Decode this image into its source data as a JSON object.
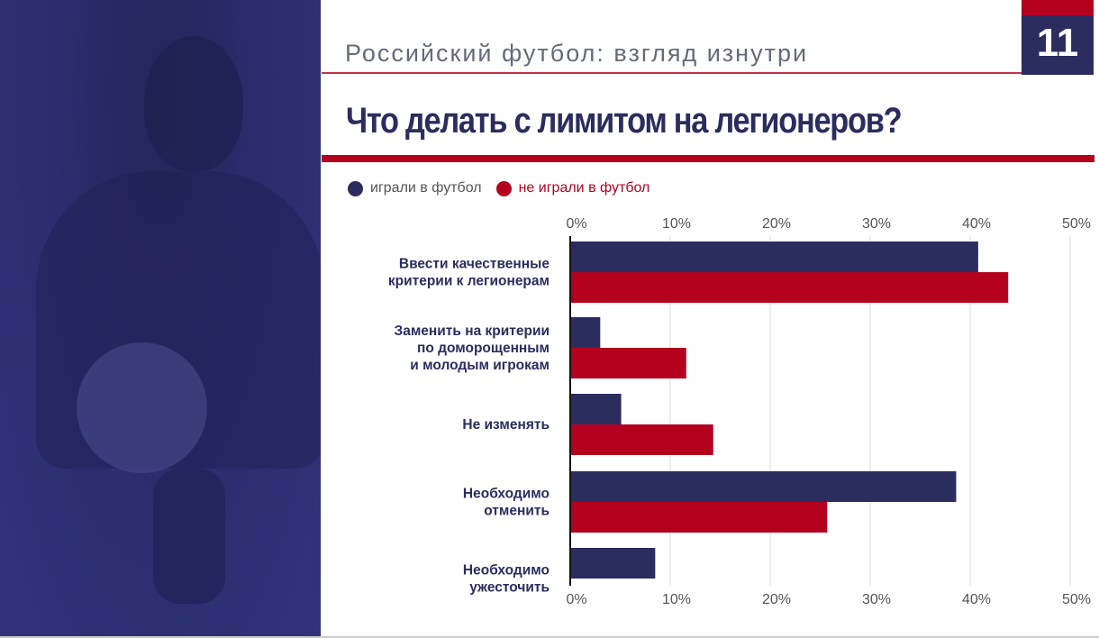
{
  "header": {
    "subtitle": "Российский футбол: взгляд изнутри",
    "page_number": "11"
  },
  "colors": {
    "navy": "#2b2d5e",
    "red": "#b4001f"
  },
  "chart_data": {
    "type": "bar",
    "orientation": "horizontal",
    "title": "Что делать с лимитом на легионеров?",
    "categories": [
      [
        "Ввести качественные",
        "критерии к легионерам"
      ],
      [
        "Заменить на критерии",
        "по доморощенным",
        "и молодым игрокам"
      ],
      [
        "Не изменять"
      ],
      [
        "Необходимо",
        "отменить"
      ],
      [
        "Необходимо",
        "ужесточить"
      ]
    ],
    "series": [
      {
        "name": "играли в футбол",
        "color": "#2b2d5e",
        "values": [
          40.8,
          3.0,
          5.1,
          38.6,
          8.5
        ]
      },
      {
        "name": "не играли в футбол",
        "color": "#b4001f",
        "values": [
          43.8,
          11.6,
          14.3,
          25.7,
          0
        ]
      }
    ],
    "xlim": [
      0,
      50
    ],
    "tick_labels": [
      "0%",
      "10%",
      "20%",
      "30%",
      "40%",
      "50%"
    ],
    "grid": true,
    "legend": "top-left"
  }
}
